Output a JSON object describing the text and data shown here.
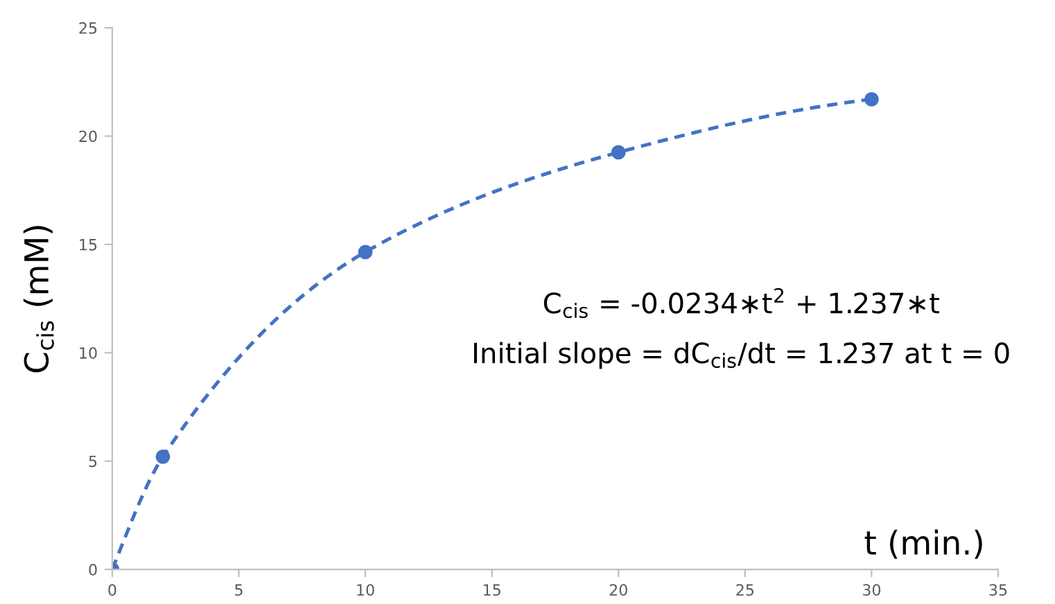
{
  "chart_data": {
    "type": "line",
    "xlabel": "t (min.)",
    "ylabel": "C$_{cis}$ (mM)",
    "x": [
      0,
      2,
      10,
      20,
      30
    ],
    "series": [
      {
        "color": "#4472c4",
        "values": [
          0,
          5.2,
          14.65,
          19.25,
          21.7
        ]
      }
    ],
    "xlim": [
      0,
      35
    ],
    "xticks": [
      0,
      5,
      10,
      15,
      20,
      25,
      30,
      35
    ],
    "ylim": [
      0,
      25
    ],
    "yticks": [
      0,
      5,
      10,
      15,
      20,
      25
    ],
    "marker": "circle",
    "line_style": "dashed",
    "annotations": [
      "C$_{cis}$ = -0.0234∗t$^{2}$ + 1.237∗t",
      "Initial slope = dC$_{cis}$/dt = 1.237 at t = 0"
    ]
  }
}
